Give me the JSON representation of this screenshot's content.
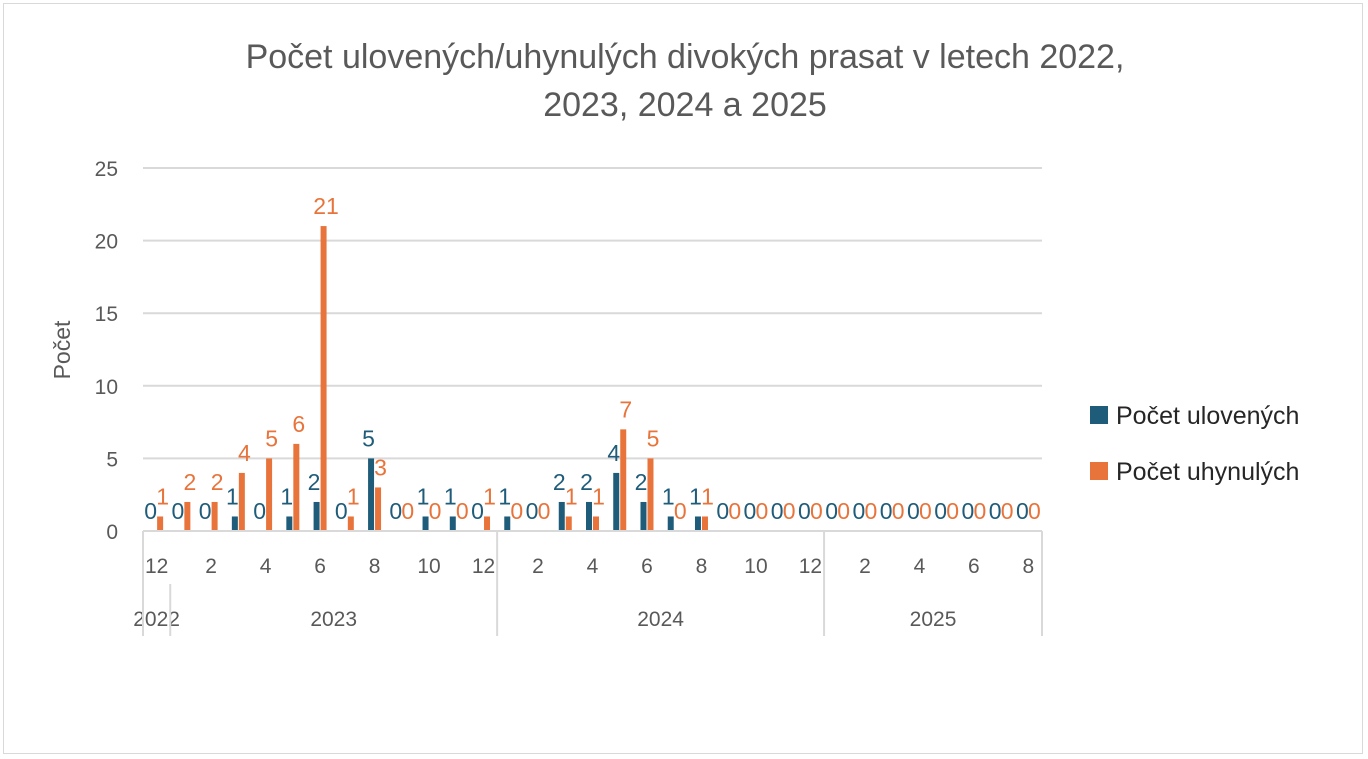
{
  "chart_data": {
    "type": "bar",
    "title_line1": "Počet ulovených/uhynulých divokých prasat v letech 2022,",
    "title_line2": "2023, 2024 a 2025",
    "ylabel": "Počet",
    "xlabel": "",
    "ylim": [
      0,
      25
    ],
    "yticks": [
      0,
      5,
      10,
      15,
      20,
      25
    ],
    "grid": true,
    "legend_position": "right",
    "categories": [
      "2022-12",
      "2023-1",
      "2023-2",
      "2023-3",
      "2023-4",
      "2023-5",
      "2023-6",
      "2023-7",
      "2023-8",
      "2023-9",
      "2023-10",
      "2023-11",
      "2023-12",
      "2024-1",
      "2024-2",
      "2024-3",
      "2024-4",
      "2024-5",
      "2024-6",
      "2024-7",
      "2024-8",
      "2024-9",
      "2024-10",
      "2024-11",
      "2024-12",
      "2025-1",
      "2025-2",
      "2025-3",
      "2025-4",
      "2025-5",
      "2025-6",
      "2025-7",
      "2025-8"
    ],
    "month_tick_labels": [
      "12",
      "",
      "2",
      "",
      "4",
      "",
      "6",
      "",
      "8",
      "",
      "10",
      "",
      "12",
      "",
      "2",
      "",
      "4",
      "",
      "6",
      "",
      "8",
      "",
      "10",
      "",
      "12",
      "",
      "2",
      "",
      "4",
      "",
      "6",
      "",
      "8"
    ],
    "years": [
      {
        "label": "2022",
        "months": 1
      },
      {
        "label": "2023",
        "months": 12
      },
      {
        "label": "2024",
        "months": 12
      },
      {
        "label": "2025",
        "months": 8
      }
    ],
    "series": [
      {
        "name": "Počet ulovených",
        "color": "#1f5c7a",
        "values": [
          0,
          0,
          0,
          1,
          0,
          1,
          2,
          0,
          5,
          0,
          1,
          1,
          0,
          1,
          0,
          2,
          2,
          4,
          2,
          1,
          1,
          0,
          0,
          0,
          0,
          0,
          0,
          0,
          0,
          0,
          0,
          0,
          0
        ]
      },
      {
        "name": "Počet uhynulých",
        "color": "#e8743b",
        "values": [
          1,
          2,
          2,
          4,
          5,
          6,
          21,
          1,
          3,
          0,
          0,
          0,
          1,
          0,
          0,
          1,
          1,
          7,
          5,
          0,
          1,
          0,
          0,
          0,
          0,
          0,
          0,
          0,
          0,
          0,
          0,
          0,
          0
        ]
      }
    ]
  }
}
